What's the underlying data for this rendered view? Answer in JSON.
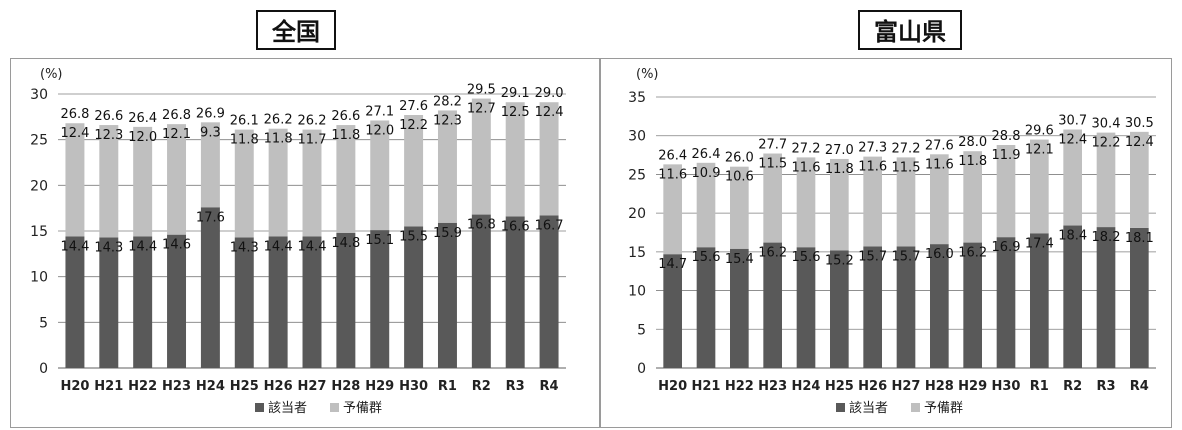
{
  "panels": {
    "left_title": "全国",
    "right_title": "富山県"
  },
  "colors": {
    "gaitosha": "#595959",
    "yobigun": "#bfbfbf",
    "grid": "#7f7f7f"
  },
  "chart_data": [
    {
      "type": "bar",
      "stacked": true,
      "title": "全国",
      "unit_label": "(%)",
      "ylim": [
        0,
        30
      ],
      "yticks": [
        0,
        5,
        10,
        15,
        20,
        25,
        30
      ],
      "grid": true,
      "legend_position": "bottom",
      "categories": [
        "H20",
        "H21",
        "H22",
        "H23",
        "H24",
        "H25",
        "H26",
        "H27",
        "H28",
        "H29",
        "H30",
        "R1",
        "R2",
        "R3",
        "R4"
      ],
      "series": [
        {
          "name": "該当者",
          "values": [
            14.4,
            14.3,
            14.4,
            14.6,
            17.6,
            14.3,
            14.4,
            14.4,
            14.8,
            15.1,
            15.5,
            15.9,
            16.8,
            16.6,
            16.7
          ]
        },
        {
          "name": "予備群",
          "values": [
            12.4,
            12.3,
            12.0,
            12.1,
            9.3,
            11.8,
            11.8,
            11.7,
            11.8,
            12.0,
            12.2,
            12.3,
            12.7,
            12.5,
            12.4
          ]
        }
      ],
      "totals": [
        26.8,
        26.6,
        26.4,
        26.8,
        26.9,
        26.1,
        26.2,
        26.2,
        26.6,
        27.1,
        27.6,
        28.2,
        29.5,
        29.1,
        29.0
      ]
    },
    {
      "type": "bar",
      "stacked": true,
      "title": "富山県",
      "unit_label": "(%)",
      "ylim": [
        0,
        35
      ],
      "yticks": [
        0,
        5,
        10,
        15,
        20,
        25,
        30,
        35
      ],
      "grid": true,
      "legend_position": "bottom",
      "categories": [
        "H20",
        "H21",
        "H22",
        "H23",
        "H24",
        "H25",
        "H26",
        "H27",
        "H28",
        "H29",
        "H30",
        "R1",
        "R2",
        "R3",
        "R4"
      ],
      "series": [
        {
          "name": "該当者",
          "values": [
            14.7,
            15.6,
            15.4,
            16.2,
            15.6,
            15.2,
            15.7,
            15.7,
            16.0,
            16.2,
            16.9,
            17.4,
            18.4,
            18.2,
            18.1
          ]
        },
        {
          "name": "予備群",
          "values": [
            11.6,
            10.9,
            10.6,
            11.5,
            11.6,
            11.8,
            11.6,
            11.5,
            11.6,
            11.8,
            11.9,
            12.1,
            12.4,
            12.2,
            12.4
          ]
        }
      ],
      "totals": [
        26.4,
        26.4,
        26.0,
        27.7,
        27.2,
        27.0,
        27.3,
        27.2,
        27.6,
        28.0,
        28.8,
        29.6,
        30.7,
        30.4,
        30.5
      ]
    }
  ]
}
